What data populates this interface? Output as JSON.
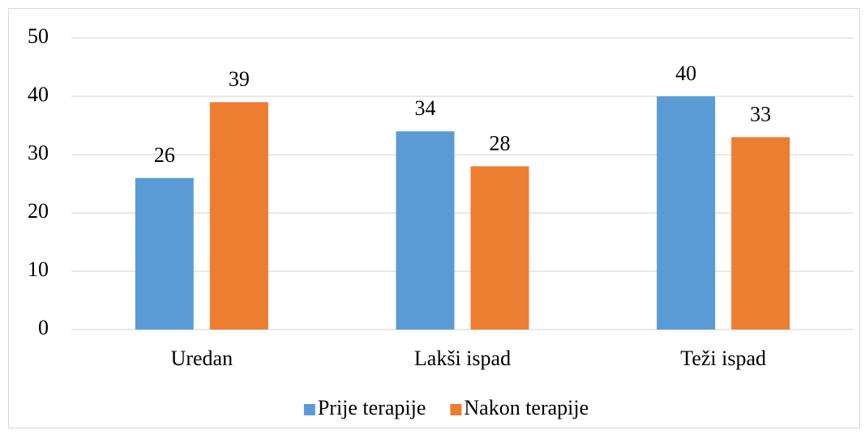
{
  "chart_data": {
    "type": "bar",
    "categories": [
      "Uredan",
      "Lakši ispad",
      "Teži ispad"
    ],
    "series": [
      {
        "name": "Prije terapije",
        "color": "#5b9bd5",
        "values": [
          26,
          34,
          40
        ]
      },
      {
        "name": "Nakon terapije",
        "color": "#ed7d31",
        "values": [
          39,
          28,
          33
        ]
      }
    ],
    "ylim": [
      0,
      50
    ],
    "yticks": [
      0,
      10,
      20,
      30,
      40,
      50
    ],
    "grid": true,
    "legend": "bottom"
  }
}
